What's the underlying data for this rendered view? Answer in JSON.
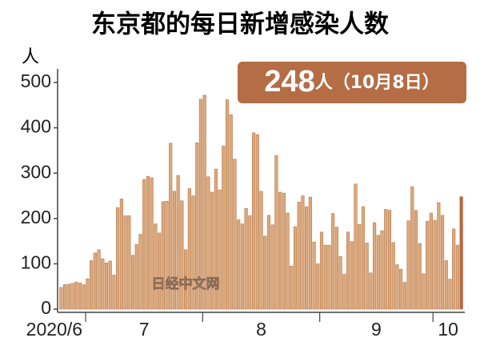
{
  "chart_data": {
    "type": "bar",
    "title": "东京都的每日新增感染人数",
    "y_unit": "人",
    "annotation_number": 248,
    "annotation_text": "人（10月8日）",
    "watermark": "日经中文网",
    "color": "#dba97c",
    "edge_color": "#b97a4e",
    "highlight_color": "#b8683f",
    "annotation_color": "#b56d45",
    "ylim": [
      0,
      500
    ],
    "yticks": [
      0,
      100,
      200,
      300,
      400,
      500
    ],
    "categories": [
      "2020/6",
      "2020/6",
      "2020/6",
      "2020/6",
      "2020/6",
      "2020/6",
      "2020/6",
      "7",
      "7",
      "7",
      "7",
      "7",
      "7",
      "7",
      "7",
      "7",
      "7",
      "7",
      "7",
      "7",
      "7",
      "7",
      "7",
      "7",
      "7",
      "7",
      "7",
      "7",
      "7",
      "7",
      "7",
      "7",
      "7",
      "7",
      "7",
      "7",
      "7",
      "7",
      "8",
      "8",
      "8",
      "8",
      "8",
      "8",
      "8",
      "8",
      "8",
      "8",
      "8",
      "8",
      "8",
      "8",
      "8",
      "8",
      "8",
      "8",
      "8",
      "8",
      "8",
      "8",
      "8",
      "8",
      "8",
      "8",
      "8",
      "8",
      "8",
      "8",
      "8",
      "9",
      "9",
      "9",
      "9",
      "9",
      "9",
      "9",
      "9",
      "9",
      "9",
      "9",
      "9",
      "9",
      "9",
      "9",
      "9",
      "9",
      "9",
      "9",
      "9",
      "9",
      "9",
      "9",
      "9",
      "9",
      "9",
      "9",
      "9",
      "9",
      "9",
      "10",
      "10",
      "10",
      "10",
      "10",
      "10",
      "10",
      "10"
    ],
    "values": [
      48,
      54,
      55,
      57,
      60,
      58,
      54,
      67,
      107,
      124,
      131,
      111,
      102,
      106,
      75,
      224,
      243,
      206,
      206,
      119,
      143,
      165,
      286,
      293,
      290,
      188,
      168,
      237,
      238,
      366,
      260,
      295,
      239,
      131,
      266,
      250,
      367,
      463,
      472,
      292,
      258,
      309,
      263,
      360,
      462,
      429,
      331,
      197,
      188,
      222,
      206,
      389,
      385,
      260,
      161,
      207,
      186,
      339,
      258,
      256,
      212,
      95,
      182,
      236,
      250,
      226,
      247,
      148,
      100,
      170,
      141,
      141,
      211,
      181,
      116,
      77,
      170,
      149,
      276,
      187,
      226,
      146,
      80,
      191,
      163,
      173,
      220,
      218,
      147,
      98,
      88,
      59,
      195,
      270,
      218,
      145,
      78,
      194,
      212,
      196,
      235,
      207,
      107,
      66,
      177,
      141,
      248
    ]
  }
}
